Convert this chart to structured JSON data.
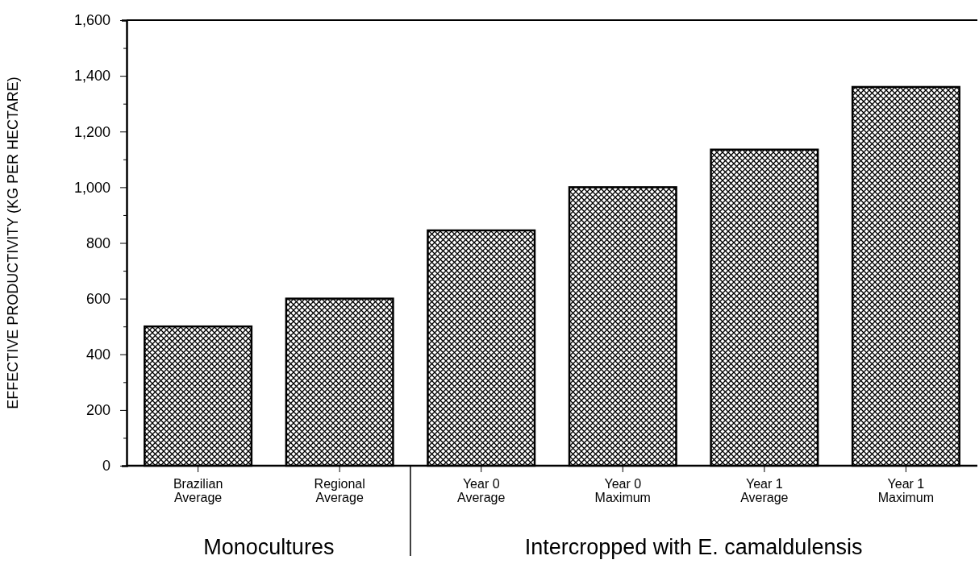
{
  "chart_data": {
    "type": "bar",
    "ylabel": "EFFECTIVE PRODUCTIVITY (KG PER HECTARE)",
    "categories": [
      "Brazilian\nAverage",
      "Regional\nAverage",
      "Year 0\nAverage",
      "Year 0\nMaximum",
      "Year 1\nAverage",
      "Year 1\nMaximum"
    ],
    "values": [
      500,
      600,
      845,
      1000,
      1135,
      1360
    ],
    "color": "#000000",
    "ylim": [
      0,
      1600
    ],
    "yticks": [
      0,
      {
        "value": 100,
        "label": null
      },
      200,
      {
        "value": 300,
        "label": null
      },
      400,
      {
        "value": 500,
        "label": null
      },
      600,
      {
        "value": 700,
        "label": null
      },
      800,
      {
        "value": 900,
        "label": null
      },
      {
        "value": 1000,
        "label": "1,000"
      },
      {
        "value": 1100,
        "label": null
      },
      {
        "value": 1200,
        "label": "1,200"
      },
      {
        "value": 1300,
        "label": null
      },
      {
        "value": 1400,
        "label": "1,400"
      },
      {
        "value": 1500,
        "label": null
      },
      {
        "value": 1600,
        "label": "1,600"
      }
    ],
    "annotations": [
      "Monocultures",
      "Intercropped with E. camaldulensis"
    ]
  }
}
